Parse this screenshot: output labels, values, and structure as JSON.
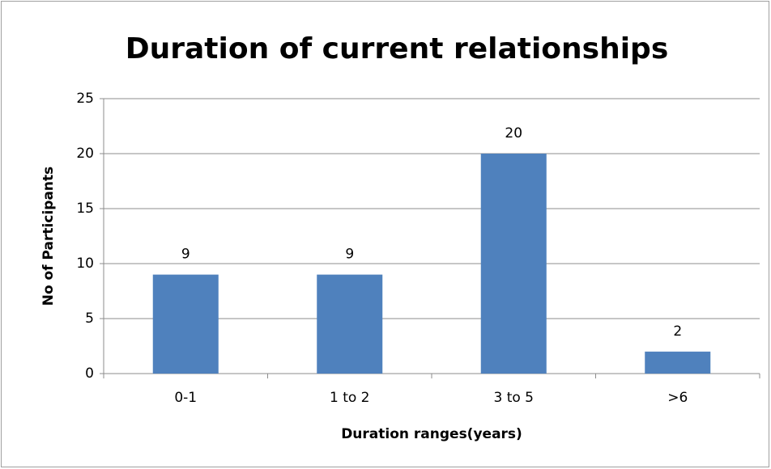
{
  "chart_data": {
    "type": "bar",
    "title": "Duration of current relationships",
    "x_label": "Duration ranges(years)",
    "y_label": "No of Participants",
    "categories": [
      "0-1",
      "1 to 2",
      "3 to 5",
      ">6"
    ],
    "values": [
      9,
      9,
      20,
      2
    ],
    "color": "#4f81bd",
    "ylim": [
      0,
      25
    ],
    "yticks": [
      0,
      5,
      10,
      15,
      20,
      25
    ],
    "grid": true
  }
}
